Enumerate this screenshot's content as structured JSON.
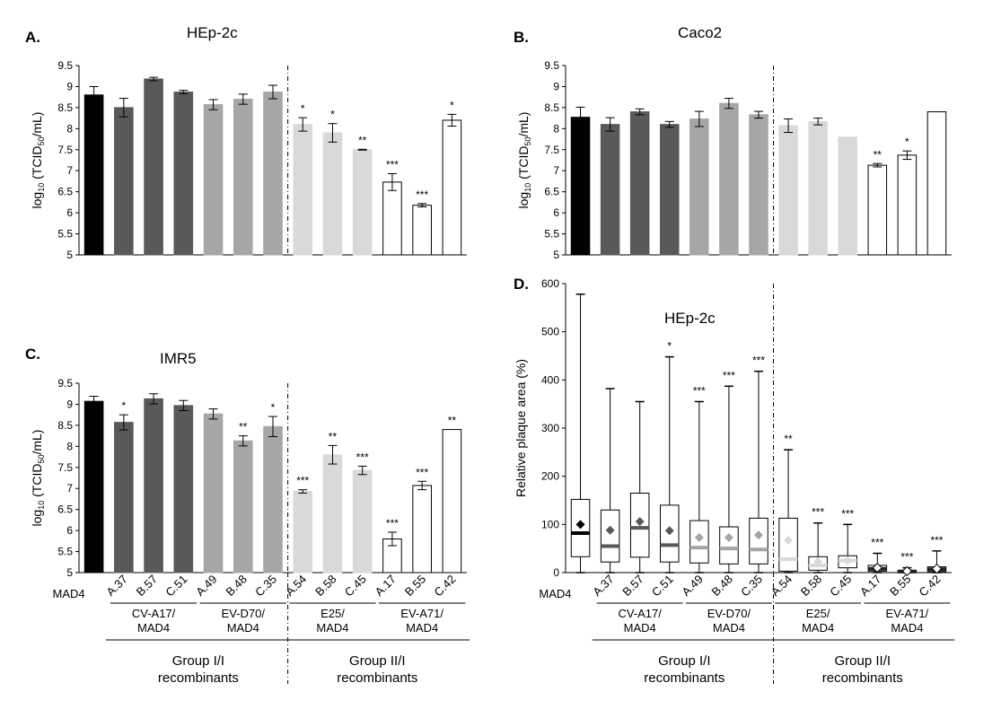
{
  "category_labels": [
    "MAD4",
    "A.37",
    "B.57",
    "C.51",
    "A.49",
    "B.48",
    "C.35",
    "A.54",
    "B.58",
    "C.45",
    "A.17",
    "B.55",
    "C.42"
  ],
  "subgroup_labels": [
    {
      "line1": "CV-A17/",
      "line2": "MAD4"
    },
    {
      "line1": "EV-D70/",
      "line2": "MAD4"
    },
    {
      "line1": "E25/",
      "line2": "MAD4"
    },
    {
      "line1": "EV-A71/",
      "line2": "MAD4"
    }
  ],
  "group_labels": [
    {
      "line1": "Group I/I",
      "line2": "recombinants"
    },
    {
      "line1": "Group II/I",
      "line2": "recombinants"
    }
  ],
  "colors": [
    "#000000",
    "#595959",
    "#595959",
    "#595959",
    "#a6a6a6",
    "#a6a6a6",
    "#a6a6a6",
    "#d9d9d9",
    "#d9d9d9",
    "#d9d9d9",
    "#ffffff",
    "#ffffff",
    "#ffffff"
  ],
  "chart_data": [
    {
      "panel": "A.",
      "title": "HEp-2c",
      "type": "bar",
      "ylabel_main": "log",
      "ylabel_sub1": "10",
      "ylabel_mid": " (TCID",
      "ylabel_sub2": "50",
      "ylabel_end": "/mL)",
      "ylim": [
        5,
        9.5
      ],
      "yticks": [
        "5",
        "5.5",
        "6",
        "6.5",
        "7",
        "7.5",
        "8",
        "8.5",
        "9",
        "9.5"
      ],
      "values": [
        8.8,
        8.5,
        9.18,
        8.87,
        8.57,
        8.7,
        8.87,
        8.1,
        7.9,
        7.5,
        6.73,
        6.18,
        8.2
      ],
      "errors": [
        0.2,
        0.22,
        0.04,
        0.04,
        0.12,
        0.12,
        0.16,
        0.16,
        0.22,
        0.01,
        0.2,
        0.04,
        0.14
      ],
      "sig": [
        "",
        "",
        "",
        "",
        "",
        "",
        "",
        "*",
        "*",
        "**",
        "***",
        "***",
        "*"
      ]
    },
    {
      "panel": "B.",
      "title": "Caco2",
      "type": "bar",
      "ylabel_main": "log",
      "ylabel_sub1": "10",
      "ylabel_mid": " (TCID",
      "ylabel_sub2": "50",
      "ylabel_end": "/mL)",
      "ylim": [
        5,
        9.5
      ],
      "yticks": [
        "5",
        "5.5",
        "6",
        "6.5",
        "7",
        "7.5",
        "8",
        "8.5",
        "9",
        "9.5"
      ],
      "values": [
        8.27,
        8.1,
        8.4,
        8.1,
        8.23,
        8.6,
        8.33,
        8.07,
        8.17,
        7.8,
        7.13,
        7.37,
        8.4
      ],
      "errors": [
        0.24,
        0.16,
        0.07,
        0.07,
        0.18,
        0.12,
        0.08,
        0.16,
        0.08,
        0,
        0.04,
        0.1,
        0
      ],
      "sig": [
        "",
        "",
        "",
        "",
        "",
        "",
        "",
        "",
        "",
        "",
        "**",
        "*",
        ""
      ]
    },
    {
      "panel": "C.",
      "title": "IMR5",
      "type": "bar",
      "ylabel_main": "log",
      "ylabel_sub1": "10",
      "ylabel_mid": " (TCID",
      "ylabel_sub2": "50",
      "ylabel_end": "/mL)",
      "ylim": [
        5,
        9.5
      ],
      "yticks": [
        "5",
        "5.5",
        "6",
        "6.5",
        "7",
        "7.5",
        "8",
        "8.5",
        "9",
        "9.5"
      ],
      "values": [
        9.07,
        8.57,
        9.13,
        8.97,
        8.77,
        8.13,
        8.47,
        6.93,
        7.8,
        7.43,
        5.8,
        7.07,
        8.4
      ],
      "errors": [
        0.12,
        0.18,
        0.12,
        0.12,
        0.12,
        0.12,
        0.24,
        0.04,
        0.22,
        0.1,
        0.16,
        0.1,
        0
      ],
      "sig": [
        "",
        "*",
        "",
        "",
        "",
        "**",
        "*",
        "***",
        "**",
        "***",
        "***",
        "***",
        "**"
      ]
    },
    {
      "panel": "D.",
      "title": "HEp-2c",
      "type": "box",
      "ylabel": "Relative plaque area (%)",
      "ylim": [
        0,
        600
      ],
      "yticks": [
        "0",
        "100",
        "200",
        "300",
        "400",
        "500",
        "600"
      ],
      "boxes": [
        {
          "min": 0,
          "q1": 33,
          "median": 82,
          "q3": 152,
          "max": 578,
          "mean": 100
        },
        {
          "min": 0,
          "q1": 22,
          "median": 55,
          "q3": 130,
          "max": 382,
          "mean": 88
        },
        {
          "min": 0,
          "q1": 32,
          "median": 93,
          "q3": 165,
          "max": 355,
          "mean": 106
        },
        {
          "min": 0,
          "q1": 22,
          "median": 57,
          "q3": 140,
          "max": 448,
          "mean": 87
        },
        {
          "min": 0,
          "q1": 20,
          "median": 52,
          "q3": 108,
          "max": 355,
          "mean": 73
        },
        {
          "min": 0,
          "q1": 18,
          "median": 50,
          "q3": 95,
          "max": 387,
          "mean": 73
        },
        {
          "min": 0,
          "q1": 18,
          "median": 48,
          "q3": 113,
          "max": 418,
          "mean": 78
        },
        {
          "min": 0,
          "q1": 3,
          "median": 28,
          "q3": 113,
          "max": 255,
          "mean": 67
        },
        {
          "min": 0,
          "q1": 5,
          "median": 15,
          "q3": 33,
          "max": 103,
          "mean": 23
        },
        {
          "min": 0,
          "q1": 10,
          "median": 25,
          "q3": 35,
          "max": 100,
          "mean": 25
        },
        {
          "min": 0,
          "q1": 3,
          "median": 8,
          "q3": 15,
          "max": 40,
          "mean": 10
        },
        {
          "min": 0,
          "q1": 0,
          "median": 2,
          "q3": 5,
          "max": 10,
          "mean": 3
        },
        {
          "min": 0,
          "q1": 2,
          "median": 7,
          "q3": 12,
          "max": 45,
          "mean": 8
        }
      ],
      "box_colors": [
        "#000000",
        "#595959",
        "#595959",
        "#595959",
        "#a6a6a6",
        "#a6a6a6",
        "#a6a6a6",
        "#d9d9d9",
        "#d9d9d9",
        "#d9d9d9",
        "#222222",
        "#222222",
        "#222222"
      ],
      "sig": [
        "",
        "",
        "",
        "*",
        "***",
        "***",
        "***",
        "**",
        "***",
        "***",
        "***",
        "***",
        "***"
      ]
    }
  ]
}
